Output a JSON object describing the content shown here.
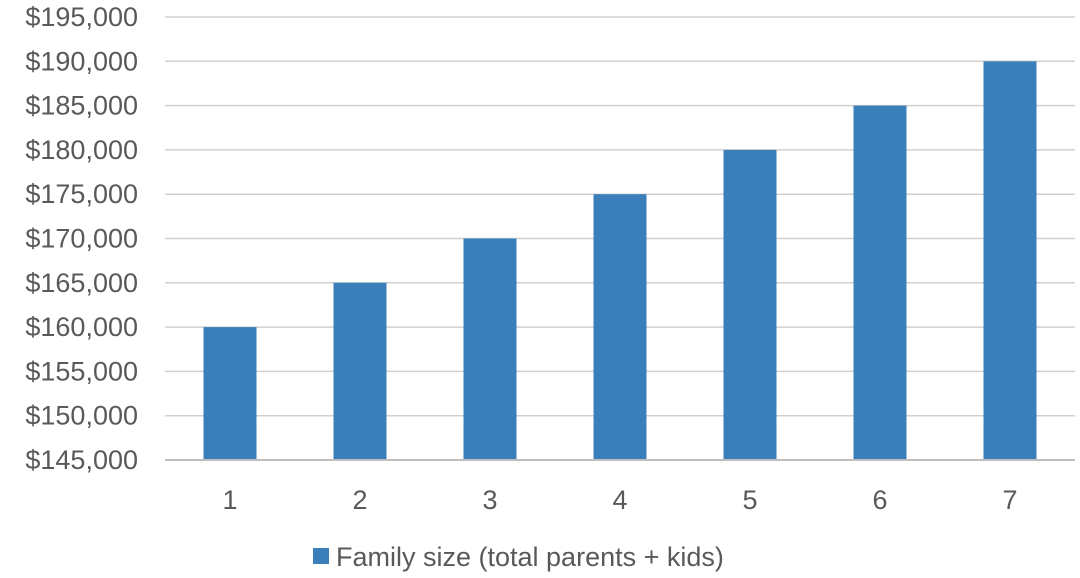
{
  "chart_data": {
    "type": "bar",
    "title": "",
    "xlabel": "",
    "ylabel": "",
    "categories": [
      "1",
      "2",
      "3",
      "4",
      "5",
      "6",
      "7"
    ],
    "series": [
      {
        "name": "Family size (total parents + kids)",
        "values": [
          160000,
          165000,
          170000,
          175000,
          180000,
          185000,
          190000
        ],
        "color": "#3a7fba"
      }
    ],
    "ylim": [
      145000,
      195000
    ],
    "yticks": [
      "$145,000",
      "$150,000",
      "$155,000",
      "$160,000",
      "$165,000",
      "$170,000",
      "$175,000",
      "$180,000",
      "$185,000",
      "$190,000",
      "$195,000"
    ],
    "grid": true,
    "legend": "bottom"
  }
}
